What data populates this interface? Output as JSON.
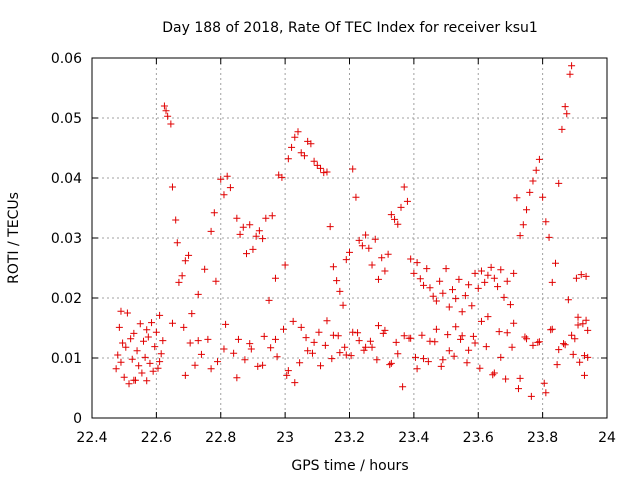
{
  "chart_data": {
    "type": "scatter",
    "title": "Day 188 of 2018, Rate Of TEC Index for receiver ksu1",
    "xlabel": "GPS time / hours",
    "ylabel": "ROTI / TECUs",
    "xlim": [
      22.4,
      24
    ],
    "ylim": [
      0,
      0.06
    ],
    "x_ticks": [
      "22.4",
      "22.6",
      "22.8",
      "23",
      "23.2",
      "23.4",
      "23.6",
      "23.8",
      "24"
    ],
    "y_ticks": [
      "0",
      "0.01",
      "0.02",
      "0.03",
      "0.04",
      "0.05",
      "0.06"
    ],
    "grid": true,
    "marker": "+",
    "color": "#e00000",
    "series": [
      {
        "name": "ROTI",
        "points": [
          [
            22.475,
            0.0082
          ],
          [
            22.48,
            0.0105
          ],
          [
            22.485,
            0.0151
          ],
          [
            22.49,
            0.0093
          ],
          [
            22.495,
            0.0125
          ],
          [
            22.5,
            0.0068
          ],
          [
            22.505,
            0.0118
          ],
          [
            22.51,
            0.0175
          ],
          [
            22.515,
            0.0057
          ],
          [
            22.52,
            0.0132
          ],
          [
            22.525,
            0.0098
          ],
          [
            22.53,
            0.0141
          ],
          [
            22.535,
            0.0063
          ],
          [
            22.54,
            0.0112
          ],
          [
            22.545,
            0.0087
          ],
          [
            22.55,
            0.0157
          ],
          [
            22.555,
            0.0075
          ],
          [
            22.56,
            0.0128
          ],
          [
            22.565,
            0.0101
          ],
          [
            22.57,
            0.0062
          ],
          [
            22.575,
            0.0135
          ],
          [
            22.58,
            0.0091
          ],
          [
            22.585,
            0.0159
          ],
          [
            22.59,
            0.0078
          ],
          [
            22.595,
            0.0119
          ],
          [
            22.6,
            0.0143
          ],
          [
            22.605,
            0.0083
          ],
          [
            22.61,
            0.0171
          ],
          [
            22.615,
            0.0107
          ],
          [
            22.62,
            0.0129
          ],
          [
            22.625,
            0.052
          ],
          [
            22.63,
            0.0512
          ],
          [
            22.635,
            0.0503
          ],
          [
            22.645,
            0.049
          ],
          [
            22.65,
            0.0385
          ],
          [
            22.66,
            0.033
          ],
          [
            22.665,
            0.0292
          ],
          [
            22.67,
            0.0226
          ],
          [
            22.68,
            0.0237
          ],
          [
            22.685,
            0.0151
          ],
          [
            22.69,
            0.0262
          ],
          [
            22.7,
            0.0271
          ],
          [
            22.705,
            0.0125
          ],
          [
            22.71,
            0.0174
          ],
          [
            22.72,
            0.0088
          ],
          [
            22.73,
            0.0206
          ],
          [
            22.74,
            0.0106
          ],
          [
            22.75,
            0.0248
          ],
          [
            22.76,
            0.0131
          ],
          [
            22.77,
            0.0311
          ],
          [
            22.78,
            0.0342
          ],
          [
            22.785,
            0.0228
          ],
          [
            22.79,
            0.0094
          ],
          [
            22.8,
            0.0398
          ],
          [
            22.81,
            0.0372
          ],
          [
            22.815,
            0.0156
          ],
          [
            22.82,
            0.0403
          ],
          [
            22.83,
            0.0384
          ],
          [
            22.84,
            0.0108
          ],
          [
            22.85,
            0.0333
          ],
          [
            22.855,
            0.0131
          ],
          [
            22.86,
            0.0306
          ],
          [
            22.87,
            0.0318
          ],
          [
            22.875,
            0.0097
          ],
          [
            22.88,
            0.0274
          ],
          [
            22.89,
            0.0322
          ],
          [
            22.895,
            0.0115
          ],
          [
            22.9,
            0.0281
          ],
          [
            22.91,
            0.0303
          ],
          [
            22.915,
            0.0086
          ],
          [
            22.92,
            0.0312
          ],
          [
            22.93,
            0.0299
          ],
          [
            22.935,
            0.0136
          ],
          [
            22.94,
            0.0333
          ],
          [
            22.95,
            0.0196
          ],
          [
            22.955,
            0.0117
          ],
          [
            22.96,
            0.0337
          ],
          [
            22.97,
            0.0233
          ],
          [
            22.975,
            0.0102
          ],
          [
            22.98,
            0.0405
          ],
          [
            22.99,
            0.0401
          ],
          [
            22.995,
            0.0148
          ],
          [
            23.0,
            0.0255
          ],
          [
            23.005,
            0.0071
          ],
          [
            23.01,
            0.0432
          ],
          [
            23.02,
            0.0451
          ],
          [
            23.025,
            0.0161
          ],
          [
            23.03,
            0.0468
          ],
          [
            23.04,
            0.0477
          ],
          [
            23.045,
            0.0092
          ],
          [
            23.05,
            0.0442
          ],
          [
            23.06,
            0.0437
          ],
          [
            23.065,
            0.0134
          ],
          [
            23.07,
            0.0461
          ],
          [
            23.08,
            0.0457
          ],
          [
            23.085,
            0.0108
          ],
          [
            23.09,
            0.0428
          ],
          [
            23.1,
            0.0421
          ],
          [
            23.105,
            0.0143
          ],
          [
            23.11,
            0.0416
          ],
          [
            23.12,
            0.0409
          ],
          [
            23.125,
            0.0121
          ],
          [
            23.13,
            0.041
          ],
          [
            23.14,
            0.0319
          ],
          [
            23.145,
            0.0099
          ],
          [
            23.15,
            0.0252
          ],
          [
            23.16,
            0.0229
          ],
          [
            23.165,
            0.0137
          ],
          [
            23.17,
            0.0211
          ],
          [
            23.18,
            0.0188
          ],
          [
            23.185,
            0.0118
          ],
          [
            23.19,
            0.0264
          ],
          [
            23.2,
            0.0276
          ],
          [
            23.205,
            0.0104
          ],
          [
            23.21,
            0.0415
          ],
          [
            23.22,
            0.0368
          ],
          [
            23.225,
            0.0142
          ],
          [
            23.23,
            0.0296
          ],
          [
            23.24,
            0.0287
          ],
          [
            23.245,
            0.0113
          ],
          [
            23.25,
            0.0305
          ],
          [
            23.26,
            0.0283
          ],
          [
            23.265,
            0.0128
          ],
          [
            23.27,
            0.0255
          ],
          [
            23.28,
            0.0298
          ],
          [
            23.285,
            0.0097
          ],
          [
            23.29,
            0.0231
          ],
          [
            23.3,
            0.0267
          ],
          [
            23.305,
            0.0141
          ],
          [
            23.31,
            0.0245
          ],
          [
            23.32,
            0.0273
          ],
          [
            23.325,
            0.0089
          ],
          [
            23.33,
            0.0339
          ],
          [
            23.34,
            0.0331
          ],
          [
            23.345,
            0.0126
          ],
          [
            23.35,
            0.0323
          ],
          [
            23.36,
            0.0351
          ],
          [
            23.365,
            0.0052
          ],
          [
            23.37,
            0.0385
          ],
          [
            23.38,
            0.0361
          ],
          [
            23.385,
            0.0133
          ],
          [
            23.39,
            0.0265
          ],
          [
            23.4,
            0.0241
          ],
          [
            23.405,
            0.0101
          ],
          [
            23.41,
            0.0259
          ],
          [
            23.42,
            0.0232
          ],
          [
            23.425,
            0.0138
          ],
          [
            23.43,
            0.0221
          ],
          [
            23.44,
            0.0249
          ],
          [
            23.445,
            0.0094
          ],
          [
            23.45,
            0.0217
          ],
          [
            23.46,
            0.0203
          ],
          [
            23.465,
            0.0127
          ],
          [
            23.47,
            0.0195
          ],
          [
            23.48,
            0.0228
          ],
          [
            23.485,
            0.0086
          ],
          [
            23.49,
            0.0208
          ],
          [
            23.5,
            0.0249
          ],
          [
            23.505,
            0.0139
          ],
          [
            23.51,
            0.0185
          ],
          [
            23.52,
            0.0214
          ],
          [
            23.525,
            0.0103
          ],
          [
            23.53,
            0.0199
          ],
          [
            23.54,
            0.0231
          ],
          [
            23.545,
            0.0131
          ],
          [
            23.55,
            0.0177
          ],
          [
            23.56,
            0.0204
          ],
          [
            23.565,
            0.0092
          ],
          [
            23.57,
            0.0222
          ],
          [
            23.58,
            0.0187
          ],
          [
            23.585,
            0.0136
          ],
          [
            23.59,
            0.0241
          ],
          [
            23.6,
            0.0216
          ],
          [
            23.605,
            0.0083
          ],
          [
            23.61,
            0.0245
          ],
          [
            23.62,
            0.0226
          ],
          [
            23.625,
            0.0119
          ],
          [
            23.63,
            0.0238
          ],
          [
            23.64,
            0.0251
          ],
          [
            23.645,
            0.0072
          ],
          [
            23.65,
            0.0233
          ],
          [
            23.66,
            0.0219
          ],
          [
            23.665,
            0.0144
          ],
          [
            23.67,
            0.0247
          ],
          [
            23.68,
            0.0201
          ],
          [
            23.685,
            0.0065
          ],
          [
            23.69,
            0.0228
          ],
          [
            23.7,
            0.0189
          ],
          [
            23.705,
            0.0118
          ],
          [
            23.71,
            0.0241
          ],
          [
            23.72,
            0.0367
          ],
          [
            23.725,
            0.0049
          ],
          [
            23.73,
            0.0304
          ],
          [
            23.74,
            0.0322
          ],
          [
            23.745,
            0.0135
          ],
          [
            23.75,
            0.0347
          ],
          [
            23.76,
            0.0376
          ],
          [
            23.765,
            0.0036
          ],
          [
            23.77,
            0.0395
          ],
          [
            23.78,
            0.0413
          ],
          [
            23.785,
            0.0126
          ],
          [
            23.79,
            0.0431
          ],
          [
            23.8,
            0.0368
          ],
          [
            23.805,
            0.0058
          ],
          [
            23.81,
            0.0327
          ],
          [
            23.82,
            0.0301
          ],
          [
            23.825,
            0.0147
          ],
          [
            23.83,
            0.0226
          ],
          [
            23.84,
            0.0258
          ],
          [
            23.845,
            0.0089
          ],
          [
            23.85,
            0.0391
          ],
          [
            23.86,
            0.0481
          ],
          [
            23.865,
            0.0124
          ],
          [
            23.87,
            0.0519
          ],
          [
            23.875,
            0.0507
          ],
          [
            23.88,
            0.0197
          ],
          [
            23.885,
            0.0573
          ],
          [
            23.89,
            0.0587
          ],
          [
            23.895,
            0.0106
          ],
          [
            23.9,
            0.0132
          ],
          [
            23.905,
            0.0233
          ],
          [
            23.91,
            0.0168
          ],
          [
            23.915,
            0.0093
          ],
          [
            23.92,
            0.0239
          ],
          [
            23.925,
            0.0157
          ],
          [
            23.93,
            0.0071
          ],
          [
            23.935,
            0.0236
          ],
          [
            23.94,
            0.0146
          ],
          [
            23.94,
            0.0101
          ],
          [
            23.935,
            0.0163
          ],
          [
            22.49,
            0.0178
          ],
          [
            22.53,
            0.0063
          ],
          [
            22.57,
            0.0147
          ],
          [
            22.61,
            0.0094
          ],
          [
            22.65,
            0.0158
          ],
          [
            22.69,
            0.0071
          ],
          [
            22.73,
            0.0129
          ],
          [
            22.77,
            0.0082
          ],
          [
            22.81,
            0.0115
          ],
          [
            22.85,
            0.0067
          ],
          [
            22.89,
            0.0124
          ],
          [
            22.93,
            0.0088
          ],
          [
            22.97,
            0.0131
          ],
          [
            23.01,
            0.0079
          ],
          [
            23.05,
            0.0151
          ],
          [
            23.09,
            0.0126
          ],
          [
            23.13,
            0.0162
          ],
          [
            23.17,
            0.0109
          ],
          [
            23.21,
            0.0143
          ],
          [
            23.25,
            0.0118
          ],
          [
            23.29,
            0.0154
          ],
          [
            23.33,
            0.0091
          ],
          [
            23.37,
            0.0137
          ],
          [
            23.41,
            0.0082
          ],
          [
            23.45,
            0.0128
          ],
          [
            23.49,
            0.0097
          ],
          [
            23.53,
            0.0152
          ],
          [
            23.57,
            0.0113
          ],
          [
            23.61,
            0.0161
          ],
          [
            23.65,
            0.0075
          ],
          [
            23.69,
            0.0142
          ],
          [
            23.73,
            0.0066
          ],
          [
            23.77,
            0.0121
          ],
          [
            23.81,
            0.0042
          ],
          [
            23.85,
            0.0114
          ],
          [
            23.89,
            0.0138
          ],
          [
            23.93,
            0.0104
          ],
          [
            23.03,
            0.0059
          ],
          [
            23.07,
            0.0112
          ],
          [
            23.11,
            0.0087
          ],
          [
            23.15,
            0.0138
          ],
          [
            23.19,
            0.0105
          ],
          [
            23.23,
            0.0129
          ],
          [
            23.27,
            0.0118
          ],
          [
            23.31,
            0.0146
          ],
          [
            23.35,
            0.0107
          ],
          [
            23.39,
            0.0133
          ],
          [
            23.43,
            0.0099
          ],
          [
            23.47,
            0.0148
          ],
          [
            23.51,
            0.0112
          ],
          [
            23.55,
            0.0137
          ],
          [
            23.59,
            0.0125
          ],
          [
            23.63,
            0.0169
          ],
          [
            23.67,
            0.0101
          ],
          [
            23.71,
            0.0158
          ],
          [
            23.75,
            0.0132
          ],
          [
            23.79,
            0.0127
          ],
          [
            23.83,
            0.0148
          ],
          [
            23.87,
            0.0122
          ],
          [
            23.91,
            0.0155
          ]
        ]
      }
    ]
  }
}
